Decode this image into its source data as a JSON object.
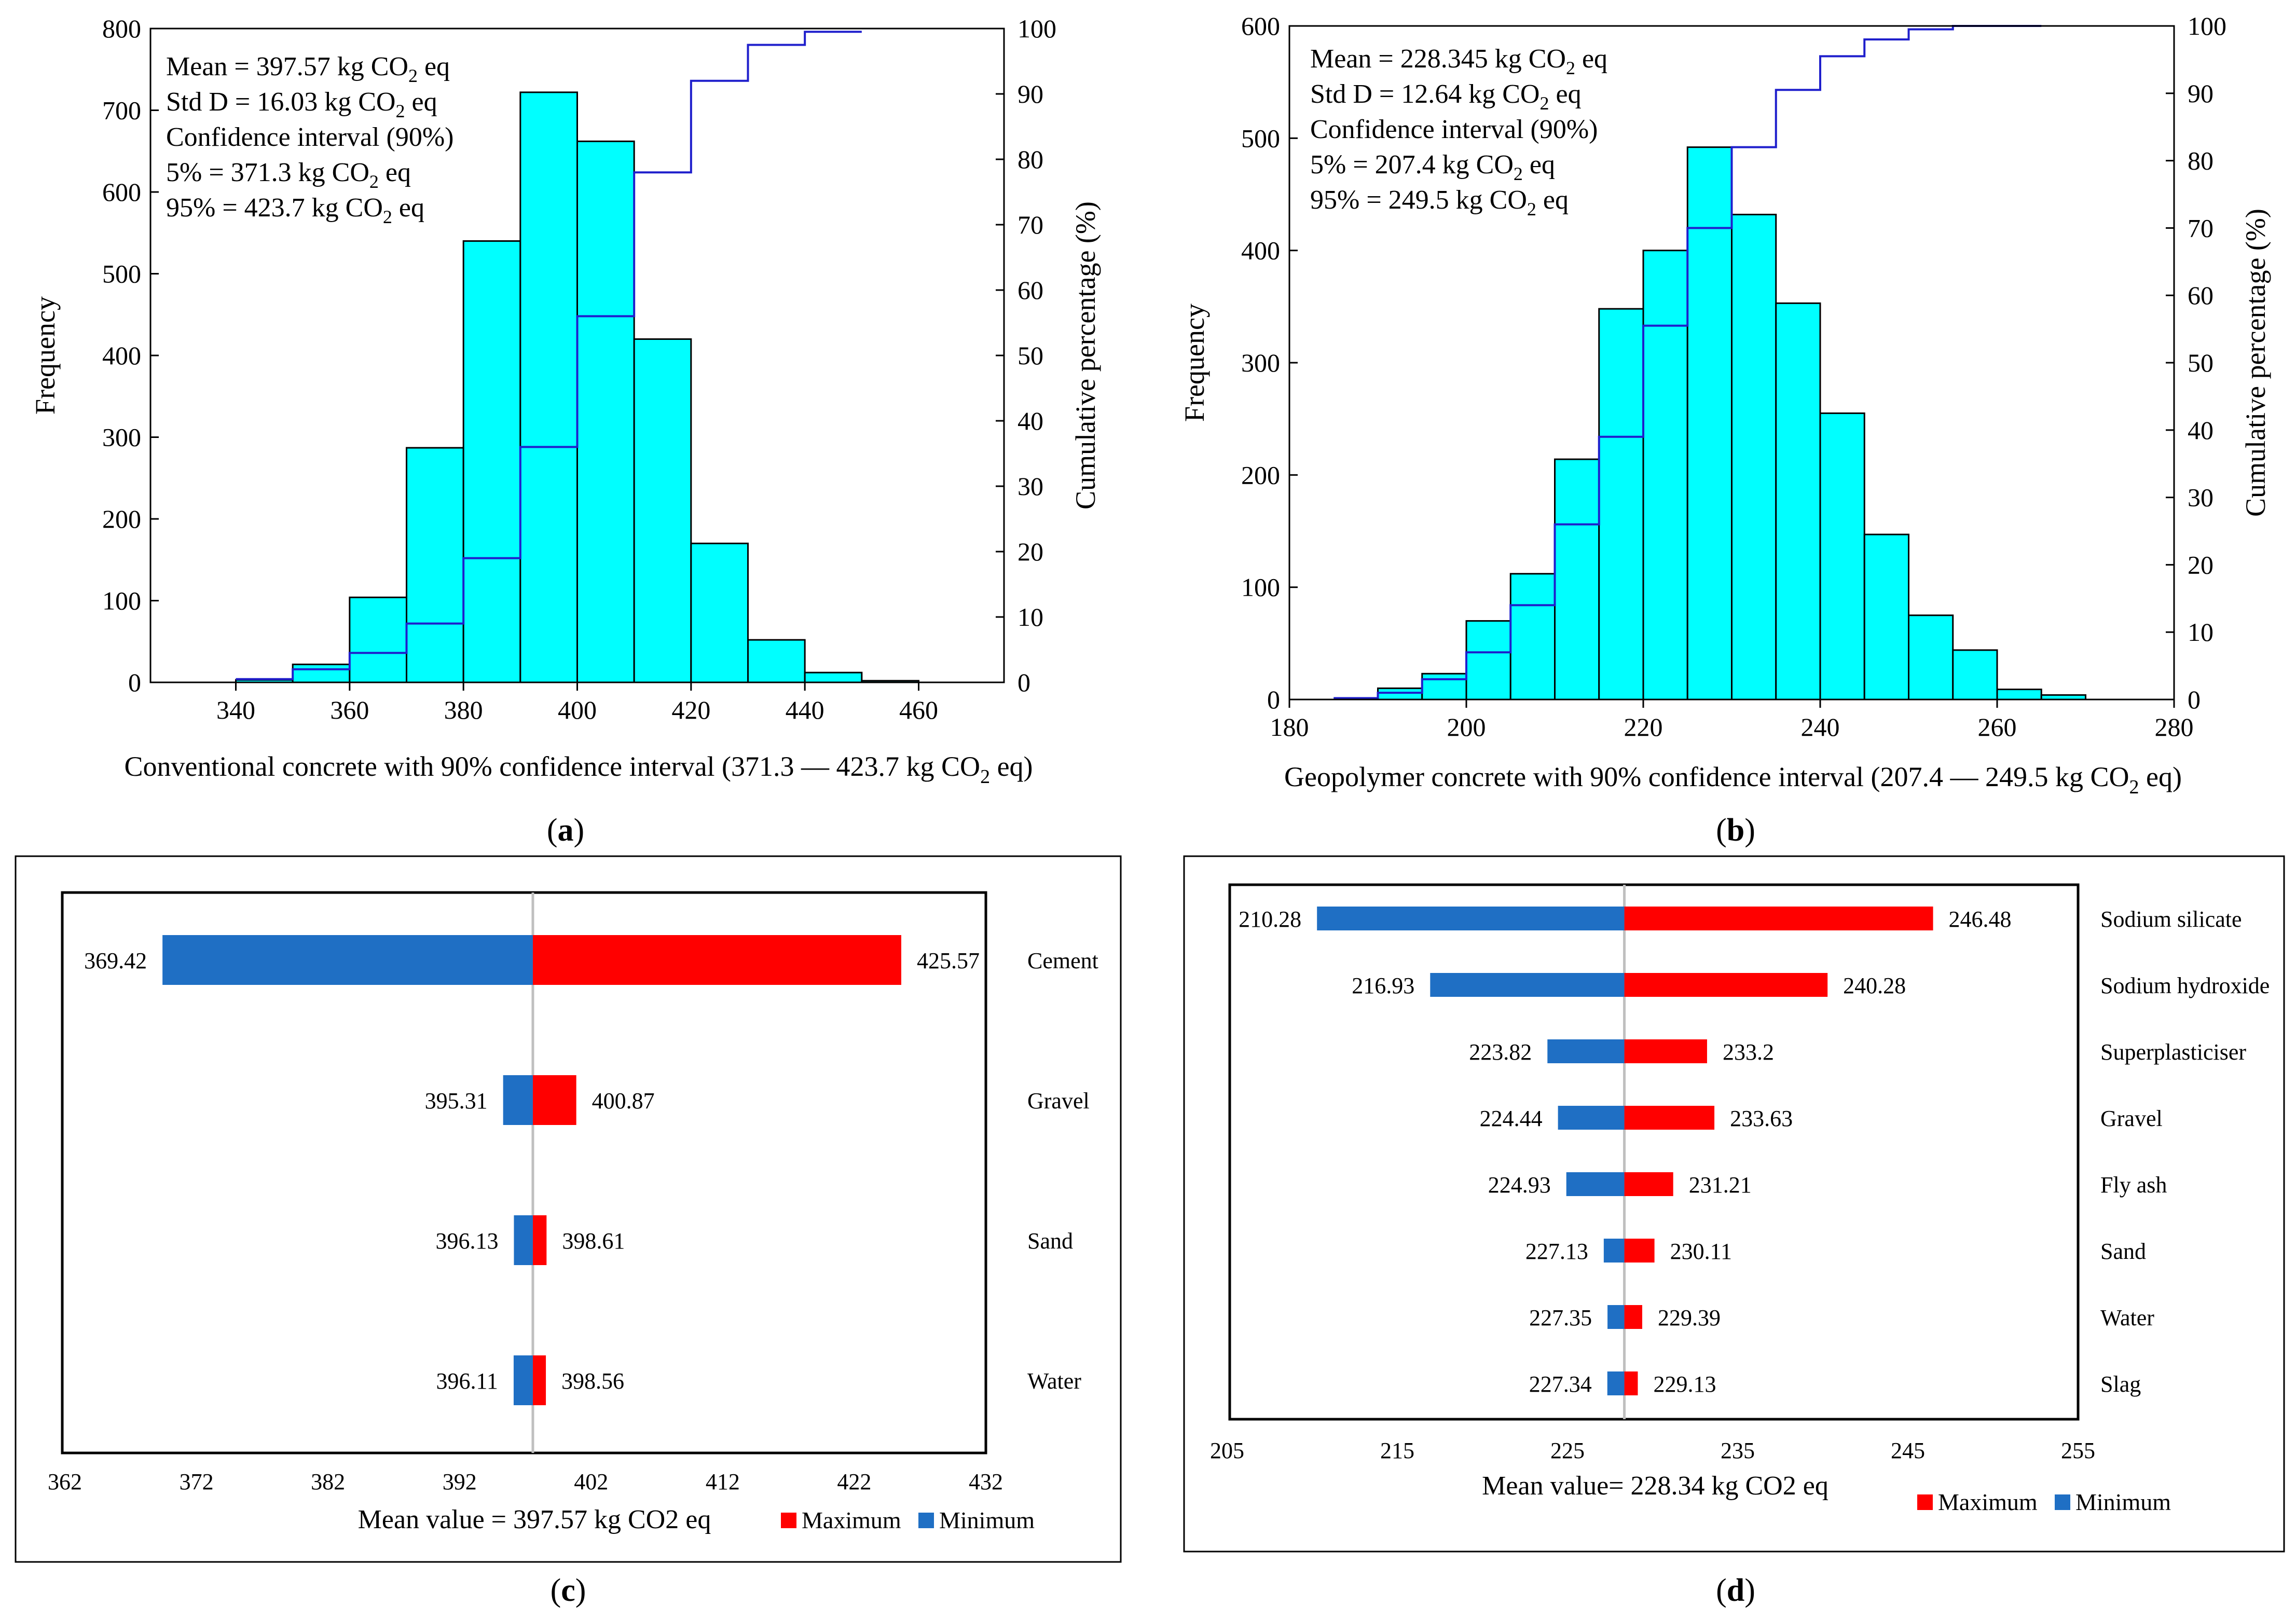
{
  "panels": {
    "a": {
      "label": "(a)",
      "letter": "a"
    },
    "b": {
      "label": "(b)",
      "letter": "b"
    },
    "c": {
      "label": "(c)",
      "letter": "c"
    },
    "d": {
      "label": "(d)",
      "letter": "d"
    }
  },
  "colors": {
    "histogram_fill": "#00FFFF",
    "cumulative_line": "#1F1FCC",
    "maximum": "#FF0000",
    "minimum": "#1F6FC4",
    "mean_line": "#BFBFBF"
  },
  "chart_data": [
    {
      "id": "a",
      "type": "bar",
      "subtype": "histogram-with-cumulative",
      "xlabel": "Conventional concrete with 90% confidence interval (371.3 — 423.7 kg CO",
      "xlabel_sub": "2",
      "xlabel_tail": " eq)",
      "ylabel": "Frequency",
      "y2label": "Cumulative percentage (%)",
      "xlim": [
        325,
        475
      ],
      "ylim": [
        0,
        800
      ],
      "y2lim": [
        0,
        100
      ],
      "xticks": [
        340,
        360,
        380,
        400,
        420,
        440,
        460
      ],
      "yticks": [
        0,
        100,
        200,
        300,
        400,
        500,
        600,
        700,
        800
      ],
      "y2ticks": [
        0,
        10,
        20,
        30,
        40,
        50,
        60,
        70,
        80,
        90,
        100
      ],
      "bins": [
        {
          "x0": 340,
          "x1": 350,
          "value": 3
        },
        {
          "x0": 350,
          "x1": 360,
          "value": 22
        },
        {
          "x0": 360,
          "x1": 370,
          "value": 104
        },
        {
          "x0": 370,
          "x1": 380,
          "value": 287
        },
        {
          "x0": 380,
          "x1": 390,
          "value": 540
        },
        {
          "x0": 390,
          "x1": 400,
          "value": 722
        },
        {
          "x0": 400,
          "x1": 410,
          "value": 662
        },
        {
          "x0": 410,
          "x1": 420,
          "value": 420
        },
        {
          "x0": 420,
          "x1": 430,
          "value": 170
        },
        {
          "x0": 430,
          "x1": 440,
          "value": 52
        },
        {
          "x0": 440,
          "x1": 450,
          "value": 12
        },
        {
          "x0": 450,
          "x1": 460,
          "value": 2
        }
      ],
      "cumulative": {
        "x": [
          345,
          355,
          365,
          375,
          385,
          395,
          405,
          415,
          425,
          435,
          445
        ],
        "values": [
          0.5,
          2,
          4.5,
          9,
          19,
          36,
          56,
          78,
          92,
          97.5,
          99.5
        ]
      },
      "stats": [
        "Mean = 397.57 kg CO",
        "Std D = 16.03 kg CO",
        "Confidence interval (90%)",
        "5% = 371.3 kg CO",
        "95% = 423.7 kg CO"
      ],
      "stats_sub": "2",
      "stats_tail": " eq"
    },
    {
      "id": "b",
      "type": "bar",
      "subtype": "histogram-with-cumulative",
      "xlabel": "Geopolymer concrete with 90% confidence interval (207.4 — 249.5 kg CO",
      "xlabel_sub": "2",
      "xlabel_tail": " eq)",
      "ylabel": "Frequency",
      "y2label": "Cumulative percentage (%)",
      "xlim": [
        180,
        280
      ],
      "ylim": [
        0,
        600
      ],
      "y2lim": [
        0,
        100
      ],
      "xticks": [
        180,
        200,
        220,
        240,
        260,
        280
      ],
      "yticks": [
        0,
        100,
        200,
        300,
        400,
        500,
        600
      ],
      "y2ticks": [
        0,
        10,
        20,
        30,
        40,
        50,
        60,
        70,
        80,
        90,
        100
      ],
      "bins": [
        {
          "x0": 190,
          "x1": 195,
          "value": 10
        },
        {
          "x0": 195,
          "x1": 200,
          "value": 23
        },
        {
          "x0": 200,
          "x1": 205,
          "value": 70
        },
        {
          "x0": 205,
          "x1": 210,
          "value": 112
        },
        {
          "x0": 210,
          "x1": 215,
          "value": 214
        },
        {
          "x0": 215,
          "x1": 220,
          "value": 348
        },
        {
          "x0": 220,
          "x1": 225,
          "value": 400
        },
        {
          "x0": 225,
          "x1": 230,
          "value": 492
        },
        {
          "x0": 230,
          "x1": 235,
          "value": 432
        },
        {
          "x0": 235,
          "x1": 240,
          "value": 353
        },
        {
          "x0": 240,
          "x1": 245,
          "value": 255
        },
        {
          "x0": 245,
          "x1": 250,
          "value": 147
        },
        {
          "x0": 250,
          "x1": 255,
          "value": 75
        },
        {
          "x0": 255,
          "x1": 260,
          "value": 44
        },
        {
          "x0": 260,
          "x1": 265,
          "value": 9
        },
        {
          "x0": 265,
          "x1": 270,
          "value": 4
        }
      ],
      "cumulative": {
        "x": [
          187.5,
          192.5,
          197.5,
          202.5,
          207.5,
          212.5,
          217.5,
          222.5,
          227.5,
          232.5,
          237.5,
          242.5,
          247.5,
          252.5,
          257.5,
          262.5
        ],
        "values": [
          0.2,
          1,
          3,
          7,
          14,
          26,
          39,
          55.5,
          70,
          82,
          90.5,
          95.5,
          98,
          99.5,
          100,
          100
        ]
      },
      "stats": [
        "Mean = 228.345 kg CO",
        "Std D = 12.64 kg CO",
        "Confidence interval (90%)",
        " 5% = 207.4 kg CO",
        "95% = 249.5 kg CO"
      ],
      "stats_sub": "2",
      "stats_tail": " eq"
    },
    {
      "id": "c",
      "type": "bar",
      "subtype": "tornado",
      "mean": 397.57,
      "xlim": [
        362,
        432
      ],
      "xticks": [
        362,
        372,
        382,
        392,
        402,
        412,
        422,
        432
      ],
      "xlabel": "Mean value = 397.57 kg CO2 eq",
      "legend": [
        "Maximum",
        "Minimum"
      ],
      "items": [
        {
          "name": "Cement",
          "min": 369.42,
          "max": 425.57,
          "min_label": "369.42",
          "max_label": "425.57"
        },
        {
          "name": "Gravel",
          "min": 395.31,
          "max": 400.87,
          "min_label": "395.31",
          "max_label": "400.87"
        },
        {
          "name": "Sand",
          "min": 396.13,
          "max": 398.61,
          "min_label": "396.13",
          "max_label": "398.61"
        },
        {
          "name": "Water",
          "min": 396.11,
          "max": 398.56,
          "min_label": "396.11",
          "max_label": "398.56"
        }
      ]
    },
    {
      "id": "d",
      "type": "bar",
      "subtype": "tornado",
      "mean": 228.34,
      "xlim": [
        205,
        255
      ],
      "xticks": [
        205,
        215,
        225,
        235,
        245,
        255
      ],
      "xlabel": "Mean value= 228.34 kg CO2 eq",
      "legend": [
        "Maximum",
        "Minimum"
      ],
      "items": [
        {
          "name": "Sodium silicate",
          "min": 210.28,
          "max": 246.48,
          "min_label": "210.28",
          "max_label": "246.48"
        },
        {
          "name": "Sodium hydroxide",
          "min": 216.93,
          "max": 240.28,
          "min_label": "216.93",
          "max_label": "240.28"
        },
        {
          "name": "Superplasticiser",
          "min": 223.82,
          "max": 233.2,
          "min_label": "223.82",
          "max_label": "233.2"
        },
        {
          "name": "Gravel",
          "min": 224.44,
          "max": 233.63,
          "min_label": "224.44",
          "max_label": "233.63"
        },
        {
          "name": "Fly ash",
          "min": 224.93,
          "max": 231.21,
          "min_label": "224.93",
          "max_label": "231.21"
        },
        {
          "name": "Sand",
          "min": 227.13,
          "max": 230.11,
          "min_label": "227.13",
          "max_label": "230.11"
        },
        {
          "name": "Water",
          "min": 227.35,
          "max": 229.39,
          "min_label": "227.35",
          "max_label": "229.39"
        },
        {
          "name": "Slag",
          "min": 227.34,
          "max": 229.13,
          "min_label": "227.34",
          "max_label": "229.13"
        }
      ]
    }
  ]
}
